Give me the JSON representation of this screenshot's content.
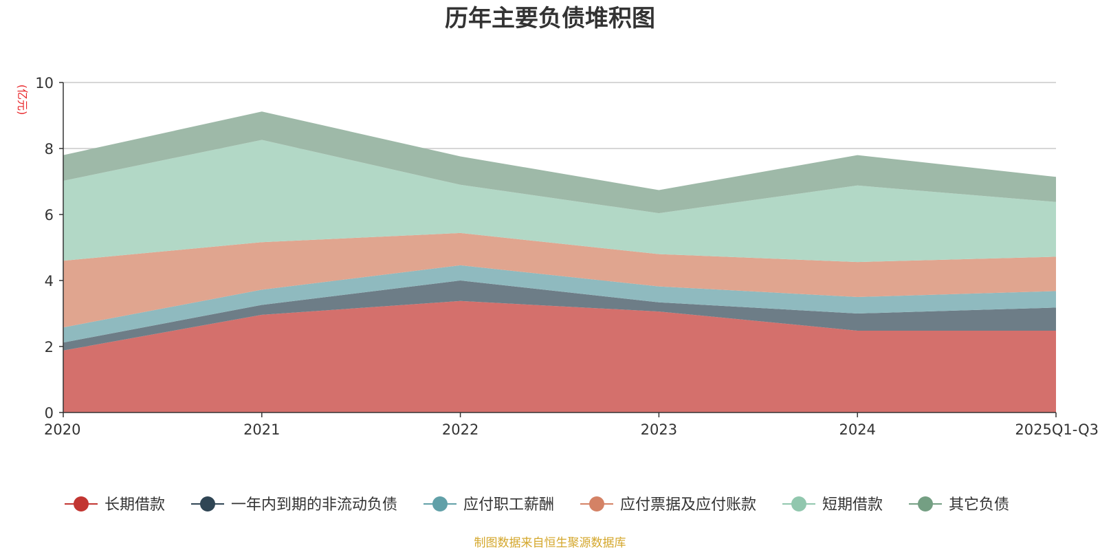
{
  "chart_data": {
    "type": "area",
    "stacked": true,
    "title": "历年主要负债堆积图",
    "unit_label": "(亿元)",
    "source_note": "制图数据来自恒生聚源数据库",
    "x": [
      "2020",
      "2021",
      "2022",
      "2023",
      "2024",
      "2025Q1-Q3"
    ],
    "ylim": [
      0,
      10
    ],
    "yticks": [
      0,
      2,
      4,
      6,
      8,
      10
    ],
    "grid": true,
    "legend_position": "bottom",
    "series": [
      {
        "name": "长期借款",
        "color": "#c23531",
        "fill": "#d4706c",
        "values": [
          1.88,
          2.96,
          3.38,
          3.06,
          2.48,
          2.48
        ]
      },
      {
        "name": "一年内到期的非流动负债",
        "color": "#2f4554",
        "fill": "#6d7d87",
        "values": [
          0.24,
          0.3,
          0.62,
          0.28,
          0.52,
          0.7
        ]
      },
      {
        "name": "应付职工薪酬",
        "color": "#61a0a8",
        "fill": "#8fbabf",
        "values": [
          0.46,
          0.46,
          0.46,
          0.48,
          0.5,
          0.5
        ]
      },
      {
        "name": "应付票据及应付账款",
        "color": "#d48265",
        "fill": "#e0a58f",
        "values": [
          2.02,
          1.44,
          0.98,
          0.98,
          1.06,
          1.04
        ]
      },
      {
        "name": "短期借款",
        "color": "#91c7ae",
        "fill": "#b2d8c6",
        "values": [
          2.42,
          3.1,
          1.46,
          1.24,
          2.32,
          1.66
        ]
      },
      {
        "name": "其它负债",
        "color": "#749f83",
        "fill": "#9eb9a8",
        "values": [
          0.78,
          0.86,
          0.86,
          0.7,
          0.92,
          0.76
        ]
      }
    ]
  }
}
